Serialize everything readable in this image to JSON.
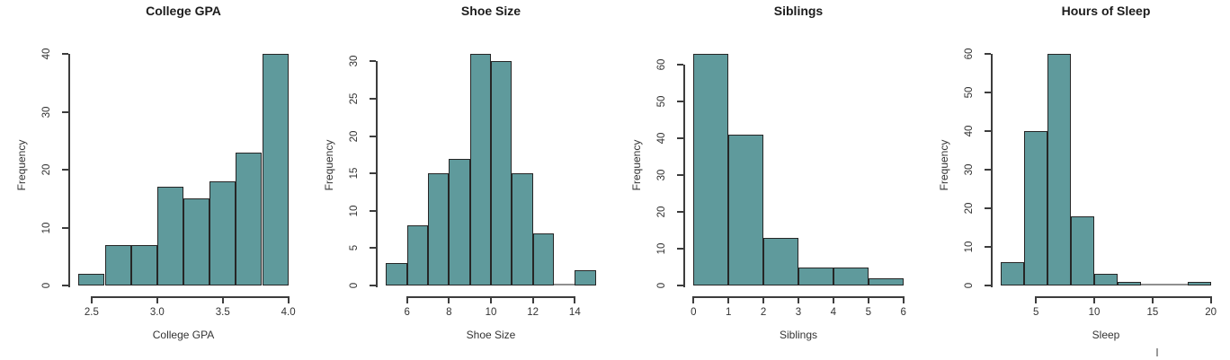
{
  "figure": {
    "background": "#ffffff",
    "panel_count": 4
  },
  "colors": {
    "bar_fill": "#5f9a9c",
    "bar_stroke": "#262626",
    "axis": "#3d3d3d",
    "text": "#333333",
    "title_text": "#1c1c1c",
    "zero_bin_line": "#8f8f8f"
  },
  "chart_data": [
    {
      "type": "bar",
      "variant": "histogram",
      "title": "College GPA",
      "xlabel": "College GPA",
      "ylabel": "Frequency",
      "bin_edges": [
        2.4,
        2.6,
        2.8,
        3.0,
        3.2,
        3.4,
        3.6,
        3.8,
        4.0
      ],
      "values": [
        2,
        7,
        7,
        17,
        15,
        18,
        23,
        40
      ],
      "x_tick_values": [
        2.5,
        3.0,
        3.5,
        4.0
      ],
      "x_tick_labels": [
        "2.5",
        "3.0",
        "3.5",
        "4.0"
      ],
      "y_tick_values": [
        0,
        10,
        20,
        30,
        40
      ],
      "y_tick_labels": [
        "0",
        "10",
        "20",
        "30",
        "40"
      ],
      "ylim": [
        0,
        40
      ],
      "grid": false,
      "legend": false
    },
    {
      "type": "bar",
      "variant": "histogram",
      "title": "Shoe Size",
      "xlabel": "Shoe Size",
      "ylabel": "Frequency",
      "bin_edges": [
        5,
        6,
        7,
        8,
        9,
        10,
        11,
        12,
        13,
        14,
        15
      ],
      "values": [
        3,
        8,
        15,
        17,
        31,
        30,
        15,
        7,
        0,
        2
      ],
      "x_tick_values": [
        6,
        8,
        10,
        12,
        14
      ],
      "x_tick_labels": [
        "6",
        "8",
        "10",
        "12",
        "14"
      ],
      "y_tick_values": [
        0,
        5,
        10,
        15,
        20,
        25,
        30
      ],
      "y_tick_labels": [
        "0",
        "5",
        "10",
        "15",
        "20",
        "25",
        "30"
      ],
      "ylim": [
        0,
        31
      ],
      "grid": false,
      "legend": false
    },
    {
      "type": "bar",
      "variant": "histogram",
      "title": "Siblings",
      "xlabel": "Siblings",
      "ylabel": "Frequency",
      "bin_edges": [
        0,
        1,
        2,
        3,
        4,
        5,
        6
      ],
      "values": [
        63,
        41,
        13,
        5,
        5,
        2
      ],
      "x_tick_values": [
        0,
        1,
        2,
        3,
        4,
        5,
        6
      ],
      "x_tick_labels": [
        "0",
        "1",
        "2",
        "3",
        "4",
        "5",
        "6"
      ],
      "y_tick_values": [
        0,
        10,
        20,
        30,
        40,
        50,
        60
      ],
      "y_tick_labels": [
        "0",
        "10",
        "20",
        "30",
        "40",
        "50",
        "60"
      ],
      "ylim": [
        0,
        63
      ],
      "grid": false,
      "legend": false
    },
    {
      "type": "bar",
      "variant": "histogram",
      "title": "Hours of Sleep",
      "xlabel": "Sleep",
      "ylabel": "Frequency",
      "bin_edges": [
        2,
        4,
        6,
        8,
        10,
        12,
        14,
        16,
        18,
        20
      ],
      "values": [
        6,
        40,
        60,
        18,
        3,
        1,
        0,
        0,
        1
      ],
      "x_tick_values": [
        5,
        10,
        15,
        20
      ],
      "x_tick_labels": [
        "5",
        "10",
        "15",
        "20"
      ],
      "y_tick_values": [
        0,
        10,
        20,
        30,
        40,
        50,
        60
      ],
      "y_tick_labels": [
        "0",
        "10",
        "20",
        "30",
        "40",
        "50",
        "60"
      ],
      "ylim": [
        0,
        60
      ],
      "grid": false,
      "legend": false
    }
  ],
  "artifacts": {
    "bottom_right_mark": true
  }
}
